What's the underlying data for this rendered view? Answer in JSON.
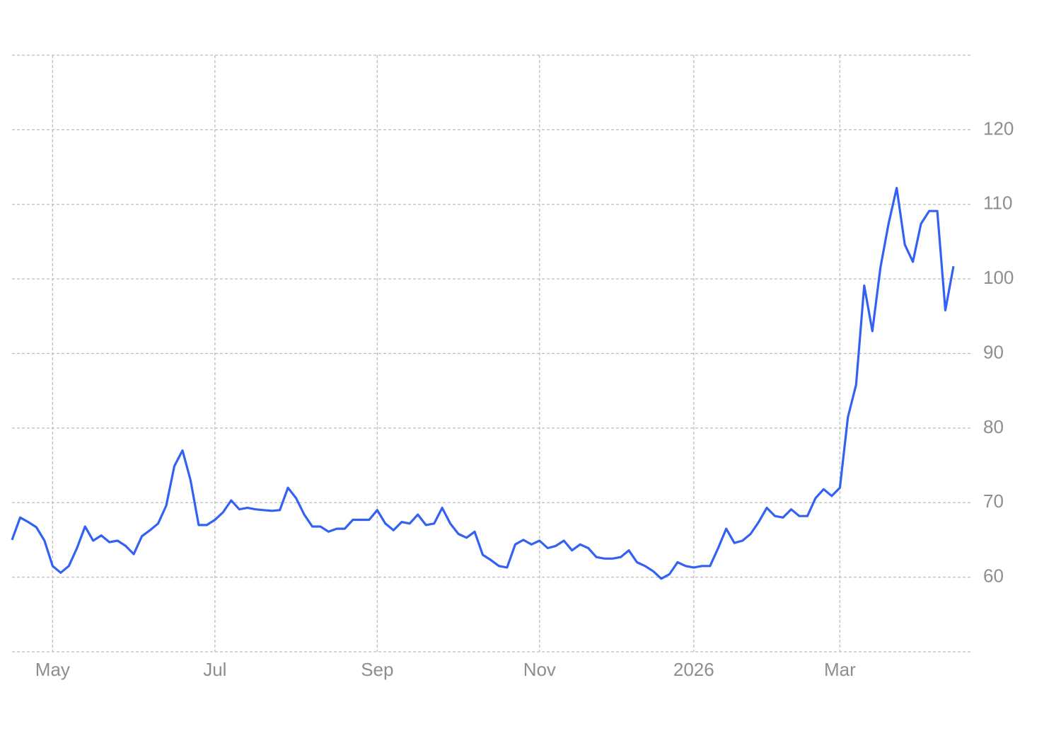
{
  "chart_data": {
    "type": "line",
    "categories": [
      null,
      null,
      null,
      null,
      null,
      "May",
      null,
      null,
      null,
      null,
      null,
      null,
      null,
      null,
      null,
      null,
      null,
      null,
      null,
      null,
      null,
      null,
      null,
      null,
      null,
      "Jul",
      null,
      null,
      null,
      null,
      null,
      null,
      null,
      null,
      null,
      null,
      null,
      null,
      null,
      null,
      null,
      null,
      null,
      null,
      null,
      "Sep",
      null,
      null,
      null,
      null,
      null,
      null,
      null,
      null,
      null,
      null,
      null,
      null,
      null,
      null,
      null,
      null,
      null,
      null,
      null,
      "Nov",
      null,
      null,
      null,
      null,
      null,
      null,
      null,
      null,
      null,
      null,
      null,
      null,
      null,
      null,
      null,
      null,
      null,
      null,
      "2026",
      null,
      null,
      null,
      null,
      null,
      null,
      null,
      null,
      null,
      null,
      null,
      null,
      null,
      null,
      null,
      null,
      null,
      "Mar",
      null,
      null,
      null,
      null,
      null,
      null,
      null,
      null,
      null,
      null,
      null,
      null,
      null,
      null
    ],
    "series": [
      {
        "color": "#3361f2",
        "values": [
          65.0,
          68.0,
          67.4,
          66.7,
          64.9,
          61.5,
          60.6,
          61.5,
          63.9,
          66.8,
          64.9,
          65.6,
          64.7,
          64.9,
          64.2,
          63.1,
          65.5,
          66.3,
          67.2,
          69.6,
          74.9,
          77.0,
          73.0,
          67.0,
          67.0,
          67.7,
          68.7,
          70.3,
          69.1,
          69.3,
          69.1,
          69.0,
          68.9,
          69.0,
          72.0,
          70.6,
          68.4,
          66.8,
          66.8,
          66.1,
          66.5,
          66.5,
          67.7,
          67.7,
          67.7,
          69.0,
          67.2,
          66.3,
          67.4,
          67.2,
          68.4,
          67.0,
          67.2,
          69.3,
          67.2,
          65.8,
          65.3,
          66.1,
          63.0,
          62.3,
          61.5,
          61.3,
          64.4,
          65.0,
          64.4,
          64.9,
          63.9,
          64.2,
          64.9,
          63.6,
          64.4,
          63.9,
          62.7,
          62.5,
          62.5,
          62.7,
          63.6,
          62.0,
          61.5,
          60.8,
          59.8,
          60.4,
          62.0,
          61.5,
          61.3,
          61.5,
          61.5,
          63.9,
          66.5,
          64.6,
          64.9,
          65.8,
          67.4,
          69.3,
          68.2,
          68.0,
          69.1,
          68.2,
          68.2,
          70.6,
          71.8,
          70.9,
          72.0,
          81.5,
          85.8,
          99.1,
          93.0,
          101.5,
          107.4,
          112.2,
          104.6,
          102.3,
          107.4,
          109.1,
          109.1,
          95.8,
          101.7
        ]
      }
    ],
    "ylim": [
      50,
      130
    ],
    "yticks": [
      60,
      70,
      80,
      90,
      100,
      110,
      120
    ],
    "grid": true
  }
}
